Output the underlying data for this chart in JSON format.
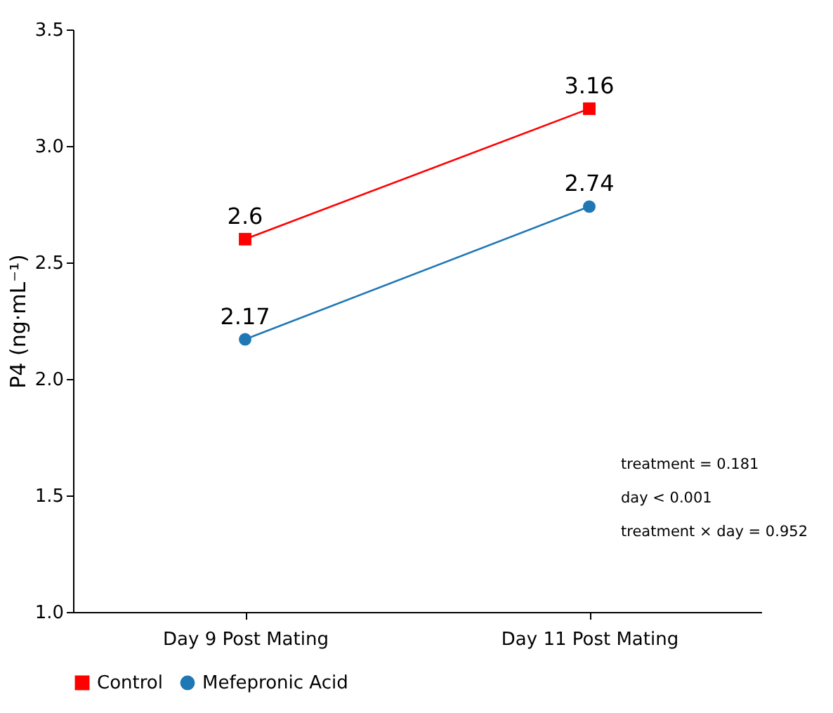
{
  "chart_data": {
    "type": "line",
    "ylabel": "P4 (ng·mL⁻¹)",
    "categories": [
      "Day 9 Post Mating",
      "Day 11 Post Mating"
    ],
    "series": [
      {
        "name": "Control",
        "color": "#ff0000",
        "marker": "square",
        "values": [
          2.6,
          3.16
        ]
      },
      {
        "name": "Mefepronic Acid",
        "color": "#1f77b4",
        "marker": "circle",
        "values": [
          2.17,
          2.74
        ]
      }
    ],
    "ylim": [
      1.0,
      3.5
    ],
    "yticks": [
      {
        "value": 1.0,
        "label": "1.0"
      },
      1.5,
      {
        "value": 2.0,
        "label": "2.0"
      },
      2.5,
      {
        "value": 3.0,
        "label": "3.0"
      },
      3.5
    ],
    "data_labels": true,
    "grid": false,
    "legend": "bottom",
    "line_style": "solid",
    "annotations": [
      "treatment = 0.181",
      "day < 0.001",
      "treatment × day = 0.952"
    ]
  }
}
